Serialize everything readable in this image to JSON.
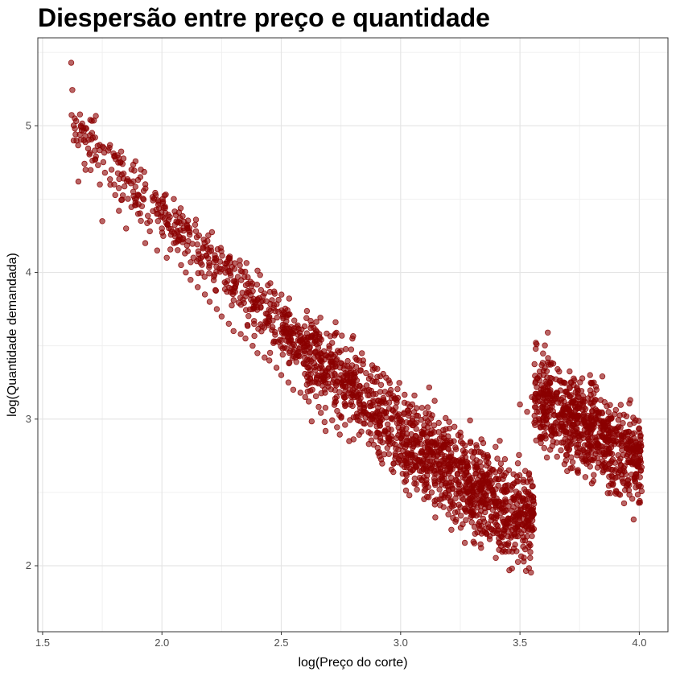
{
  "chart_data": {
    "type": "scatter",
    "title": "Diespersão entre preço e quantidade",
    "xlabel": "log(Preço do corte)",
    "ylabel": "log(Quantidade demandada)",
    "xlim": [
      1.48,
      4.12
    ],
    "ylim": [
      1.55,
      5.6
    ],
    "x_ticks": [
      1.5,
      2.0,
      2.5,
      3.0,
      3.5,
      4.0
    ],
    "x_tick_labels": [
      "1.5",
      "2.0",
      "2.5",
      "3.0",
      "3.5",
      "4.0"
    ],
    "y_ticks": [
      2,
      3,
      4,
      5
    ],
    "y_tick_labels": [
      "2",
      "3",
      "4",
      "5"
    ],
    "grid": true,
    "legend": "none",
    "point_color": "#8b0000",
    "point_opacity": 0.6,
    "series": [
      {
        "values_summary": "dense cloud of several thousand points; representative sample listed",
        "x": [
          1.62,
          1.63,
          1.65,
          1.66,
          1.68,
          1.7,
          1.72,
          1.74,
          1.75,
          1.78,
          1.8,
          1.82,
          1.85,
          1.88,
          1.9,
          1.93,
          1.95,
          1.98,
          2.0,
          2.02,
          2.05,
          2.08,
          2.1,
          2.12,
          2.15,
          2.18,
          2.2,
          2.23,
          2.25,
          2.28,
          2.3,
          2.33,
          2.35,
          2.38,
          2.4,
          2.43,
          2.45,
          2.48,
          2.5,
          2.53,
          2.55,
          2.58,
          2.6,
          2.63,
          2.65,
          2.68,
          2.7,
          2.73,
          2.75,
          2.78,
          2.8,
          2.83,
          2.85,
          2.88,
          2.9,
          2.93,
          2.95,
          2.98,
          3.0,
          3.03,
          3.05,
          3.08,
          3.1,
          3.13,
          3.15,
          3.18,
          3.2,
          3.23,
          3.25,
          3.28,
          3.3,
          3.33,
          3.35,
          3.38,
          3.4,
          3.43,
          3.45,
          3.48,
          3.5,
          3.53,
          3.55,
          3.58,
          3.6,
          3.63,
          3.65,
          3.68,
          3.7,
          3.73,
          3.75,
          3.78,
          3.8,
          3.83,
          3.85,
          3.88,
          3.9,
          3.93,
          3.95,
          3.98,
          4.0
        ],
        "y": [
          5.43,
          4.9,
          4.62,
          5.0,
          4.7,
          5.04,
          4.92,
          4.6,
          4.35,
          4.85,
          4.6,
          4.42,
          4.3,
          4.55,
          4.4,
          4.2,
          4.35,
          4.15,
          4.3,
          4.1,
          4.2,
          4.05,
          4.0,
          3.95,
          3.9,
          3.85,
          3.8,
          3.75,
          3.7,
          3.65,
          3.6,
          3.58,
          3.55,
          3.5,
          3.45,
          3.42,
          3.4,
          3.35,
          3.3,
          3.25,
          3.2,
          3.18,
          3.15,
          3.2,
          3.25,
          3.3,
          3.35,
          3.4,
          3.3,
          3.25,
          3.2,
          3.1,
          3.05,
          3.0,
          2.95,
          2.9,
          2.85,
          2.8,
          2.75,
          2.7,
          2.65,
          2.6,
          2.55,
          2.5,
          2.45,
          2.4,
          2.35,
          2.3,
          2.4,
          2.5,
          2.45,
          2.35,
          2.3,
          2.25,
          2.35,
          2.3,
          2.2,
          2.25,
          3.1,
          3.05,
          3.15,
          3.0,
          3.05,
          2.95,
          2.9,
          2.95,
          2.85,
          2.9,
          2.8,
          2.75,
          2.8,
          2.7,
          2.65,
          2.7,
          2.6,
          2.65,
          2.55,
          2.6,
          2.55
        ]
      }
    ]
  }
}
